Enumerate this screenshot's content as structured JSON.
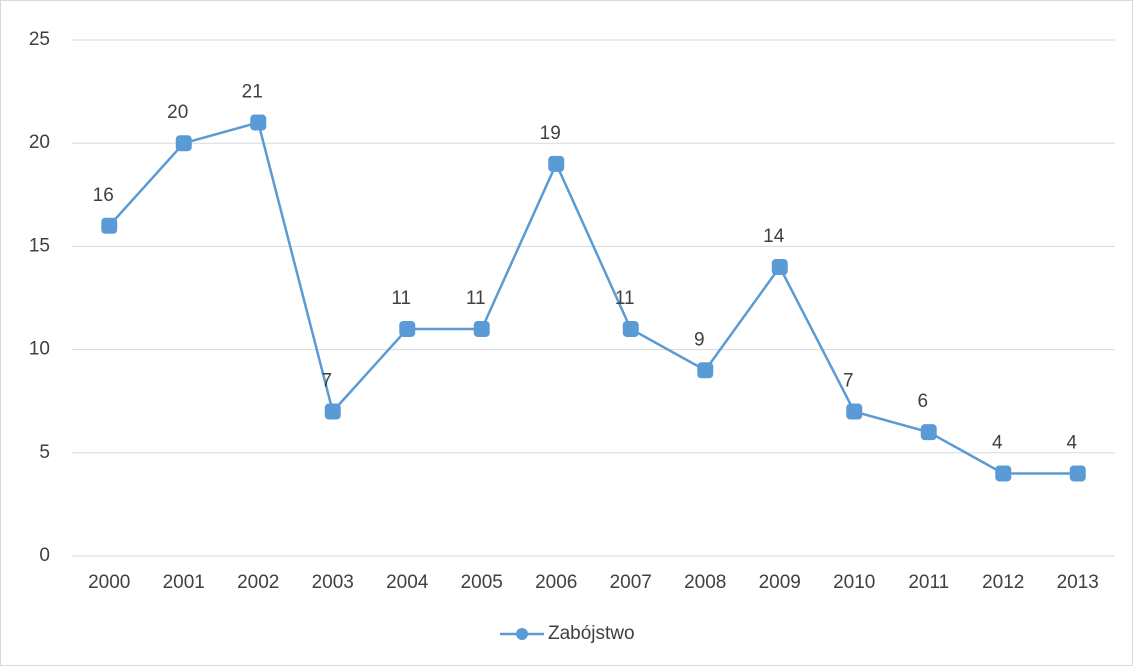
{
  "chart_data": {
    "type": "line",
    "categories": [
      "2000",
      "2001",
      "2002",
      "2003",
      "2004",
      "2005",
      "2006",
      "2007",
      "2008",
      "2009",
      "2010",
      "2011",
      "2012",
      "2013"
    ],
    "series": [
      {
        "name": "Zabójstwo",
        "color": "#5b9bd5",
        "values": [
          16,
          20,
          21,
          7,
          11,
          11,
          19,
          11,
          9,
          14,
          7,
          6,
          4,
          4
        ]
      }
    ],
    "ylim": [
      0,
      25
    ],
    "yticks": [
      0,
      5,
      10,
      15,
      20,
      25
    ],
    "grid": true,
    "legend": "bottom",
    "data_labels": true
  }
}
